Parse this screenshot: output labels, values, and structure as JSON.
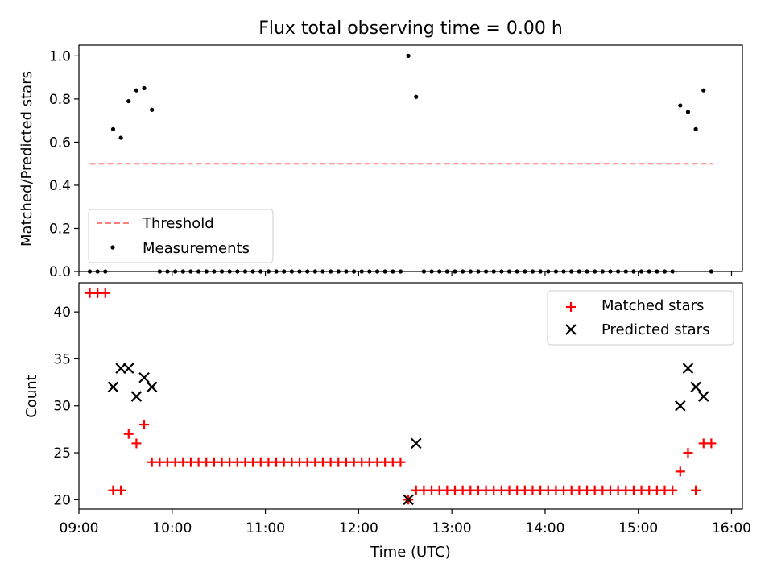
{
  "title": "Flux total observing time = 0.00 h",
  "chart_data": [
    {
      "type": "scatter",
      "ylabel": "Matched/Predicted stars",
      "xlabel": "",
      "x_ticks": [
        "09:00",
        "10:00",
        "11:00",
        "12:00",
        "13:00",
        "14:00",
        "15:00",
        "16:00"
      ],
      "xlim": [
        "09:00",
        "16:07"
      ],
      "ylim": [
        0,
        1.05
      ],
      "y_ticks": [
        "0.0",
        "0.2",
        "0.4",
        "0.6",
        "0.8",
        "1.0"
      ],
      "legend_position": "lower-left",
      "threshold": {
        "name": "Threshold",
        "color": "#ff7f7f",
        "value": 0.5,
        "x_range": [
          "09:07",
          "15:48"
        ]
      },
      "series": [
        {
          "name": "Measurements",
          "color": "#000000",
          "points": [
            [
              "09:07",
              0
            ],
            [
              "09:12",
              0
            ],
            [
              "09:17",
              0
            ],
            [
              "09:22",
              0.66
            ],
            [
              "09:27",
              0.62
            ],
            [
              "09:32",
              0.79
            ],
            [
              "09:37",
              0.84
            ],
            [
              "09:42",
              0.85
            ],
            [
              "09:47",
              0.75
            ],
            [
              "09:52",
              0
            ],
            [
              "09:57",
              0
            ],
            [
              "10:02",
              0
            ],
            [
              "10:07",
              0
            ],
            [
              "10:12",
              0
            ],
            [
              "10:17",
              0
            ],
            [
              "10:22",
              0
            ],
            [
              "10:27",
              0
            ],
            [
              "10:32",
              0
            ],
            [
              "10:37",
              0
            ],
            [
              "10:42",
              0
            ],
            [
              "10:47",
              0
            ],
            [
              "10:52",
              0
            ],
            [
              "10:57",
              0
            ],
            [
              "11:02",
              0
            ],
            [
              "11:07",
              0
            ],
            [
              "11:12",
              0
            ],
            [
              "11:17",
              0
            ],
            [
              "11:22",
              0
            ],
            [
              "11:27",
              0
            ],
            [
              "11:32",
              0
            ],
            [
              "11:37",
              0
            ],
            [
              "11:42",
              0
            ],
            [
              "11:47",
              0
            ],
            [
              "11:52",
              0
            ],
            [
              "11:57",
              0
            ],
            [
              "12:02",
              0
            ],
            [
              "12:07",
              0
            ],
            [
              "12:12",
              0
            ],
            [
              "12:17",
              0
            ],
            [
              "12:22",
              0
            ],
            [
              "12:27",
              0
            ],
            [
              "12:32",
              1.0
            ],
            [
              "12:37",
              0.81
            ],
            [
              "12:42",
              0
            ],
            [
              "12:47",
              0
            ],
            [
              "12:52",
              0
            ],
            [
              "12:57",
              0
            ],
            [
              "13:02",
              0
            ],
            [
              "13:07",
              0
            ],
            [
              "13:12",
              0
            ],
            [
              "13:17",
              0
            ],
            [
              "13:22",
              0
            ],
            [
              "13:27",
              0
            ],
            [
              "13:32",
              0
            ],
            [
              "13:37",
              0
            ],
            [
              "13:42",
              0
            ],
            [
              "13:47",
              0
            ],
            [
              "13:52",
              0
            ],
            [
              "13:57",
              0
            ],
            [
              "14:02",
              0
            ],
            [
              "14:07",
              0
            ],
            [
              "14:12",
              0
            ],
            [
              "14:17",
              0
            ],
            [
              "14:22",
              0
            ],
            [
              "14:27",
              0
            ],
            [
              "14:32",
              0
            ],
            [
              "14:37",
              0
            ],
            [
              "14:42",
              0
            ],
            [
              "14:47",
              0
            ],
            [
              "14:52",
              0
            ],
            [
              "14:57",
              0
            ],
            [
              "15:02",
              0
            ],
            [
              "15:07",
              0
            ],
            [
              "15:12",
              0
            ],
            [
              "15:17",
              0
            ],
            [
              "15:22",
              0
            ],
            [
              "15:27",
              0.77
            ],
            [
              "15:32",
              0.74
            ],
            [
              "15:37",
              0.66
            ],
            [
              "15:42",
              0.84
            ],
            [
              "15:47",
              0
            ]
          ]
        }
      ]
    },
    {
      "type": "scatter",
      "ylabel": "Count",
      "xlabel": "Time (UTC)",
      "x_ticks": [
        "09:00",
        "10:00",
        "11:00",
        "12:00",
        "13:00",
        "14:00",
        "15:00",
        "16:00"
      ],
      "xlim": [
        "09:00",
        "16:07"
      ],
      "ylim": [
        19,
        43.1
      ],
      "y_ticks": [
        "20",
        "25",
        "30",
        "35",
        "40"
      ],
      "legend_position": "upper-right",
      "series": [
        {
          "name": "Matched stars",
          "marker": "plus",
          "color": "#ff0000",
          "points": [
            [
              "09:07",
              42
            ],
            [
              "09:12",
              42
            ],
            [
              "09:17",
              42
            ],
            [
              "09:22",
              21
            ],
            [
              "09:27",
              21
            ],
            [
              "09:32",
              27
            ],
            [
              "09:37",
              26
            ],
            [
              "09:42",
              28
            ],
            [
              "09:47",
              24
            ],
            [
              "09:52",
              24
            ],
            [
              "09:57",
              24
            ],
            [
              "10:02",
              24
            ],
            [
              "10:07",
              24
            ],
            [
              "10:12",
              24
            ],
            [
              "10:17",
              24
            ],
            [
              "10:22",
              24
            ],
            [
              "10:27",
              24
            ],
            [
              "10:32",
              24
            ],
            [
              "10:37",
              24
            ],
            [
              "10:42",
              24
            ],
            [
              "10:47",
              24
            ],
            [
              "10:52",
              24
            ],
            [
              "10:57",
              24
            ],
            [
              "11:02",
              24
            ],
            [
              "11:07",
              24
            ],
            [
              "11:12",
              24
            ],
            [
              "11:17",
              24
            ],
            [
              "11:22",
              24
            ],
            [
              "11:27",
              24
            ],
            [
              "11:32",
              24
            ],
            [
              "11:37",
              24
            ],
            [
              "11:42",
              24
            ],
            [
              "11:47",
              24
            ],
            [
              "11:52",
              24
            ],
            [
              "11:57",
              24
            ],
            [
              "12:02",
              24
            ],
            [
              "12:07",
              24
            ],
            [
              "12:12",
              24
            ],
            [
              "12:17",
              24
            ],
            [
              "12:22",
              24
            ],
            [
              "12:27",
              24
            ],
            [
              "12:32",
              20
            ],
            [
              "12:37",
              21
            ],
            [
              "12:42",
              21
            ],
            [
              "12:47",
              21
            ],
            [
              "12:52",
              21
            ],
            [
              "12:57",
              21
            ],
            [
              "13:02",
              21
            ],
            [
              "13:07",
              21
            ],
            [
              "13:12",
              21
            ],
            [
              "13:17",
              21
            ],
            [
              "13:22",
              21
            ],
            [
              "13:27",
              21
            ],
            [
              "13:32",
              21
            ],
            [
              "13:37",
              21
            ],
            [
              "13:42",
              21
            ],
            [
              "13:47",
              21
            ],
            [
              "13:52",
              21
            ],
            [
              "13:57",
              21
            ],
            [
              "14:02",
              21
            ],
            [
              "14:07",
              21
            ],
            [
              "14:12",
              21
            ],
            [
              "14:17",
              21
            ],
            [
              "14:22",
              21
            ],
            [
              "14:27",
              21
            ],
            [
              "14:32",
              21
            ],
            [
              "14:37",
              21
            ],
            [
              "14:42",
              21
            ],
            [
              "14:47",
              21
            ],
            [
              "14:52",
              21
            ],
            [
              "14:57",
              21
            ],
            [
              "15:02",
              21
            ],
            [
              "15:07",
              21
            ],
            [
              "15:12",
              21
            ],
            [
              "15:17",
              21
            ],
            [
              "15:22",
              21
            ],
            [
              "15:27",
              23
            ],
            [
              "15:32",
              25
            ],
            [
              "15:37",
              21
            ],
            [
              "15:42",
              26
            ],
            [
              "15:47",
              26
            ]
          ]
        },
        {
          "name": "Predicted stars",
          "marker": "x",
          "color": "#000000",
          "points": [
            [
              "09:22",
              32
            ],
            [
              "09:27",
              34
            ],
            [
              "09:32",
              34
            ],
            [
              "09:37",
              31
            ],
            [
              "09:42",
              33
            ],
            [
              "09:47",
              32
            ],
            [
              "12:32",
              20
            ],
            [
              "12:37",
              26
            ],
            [
              "15:27",
              30
            ],
            [
              "15:32",
              34
            ],
            [
              "15:37",
              32
            ],
            [
              "15:42",
              31
            ]
          ]
        }
      ]
    }
  ]
}
